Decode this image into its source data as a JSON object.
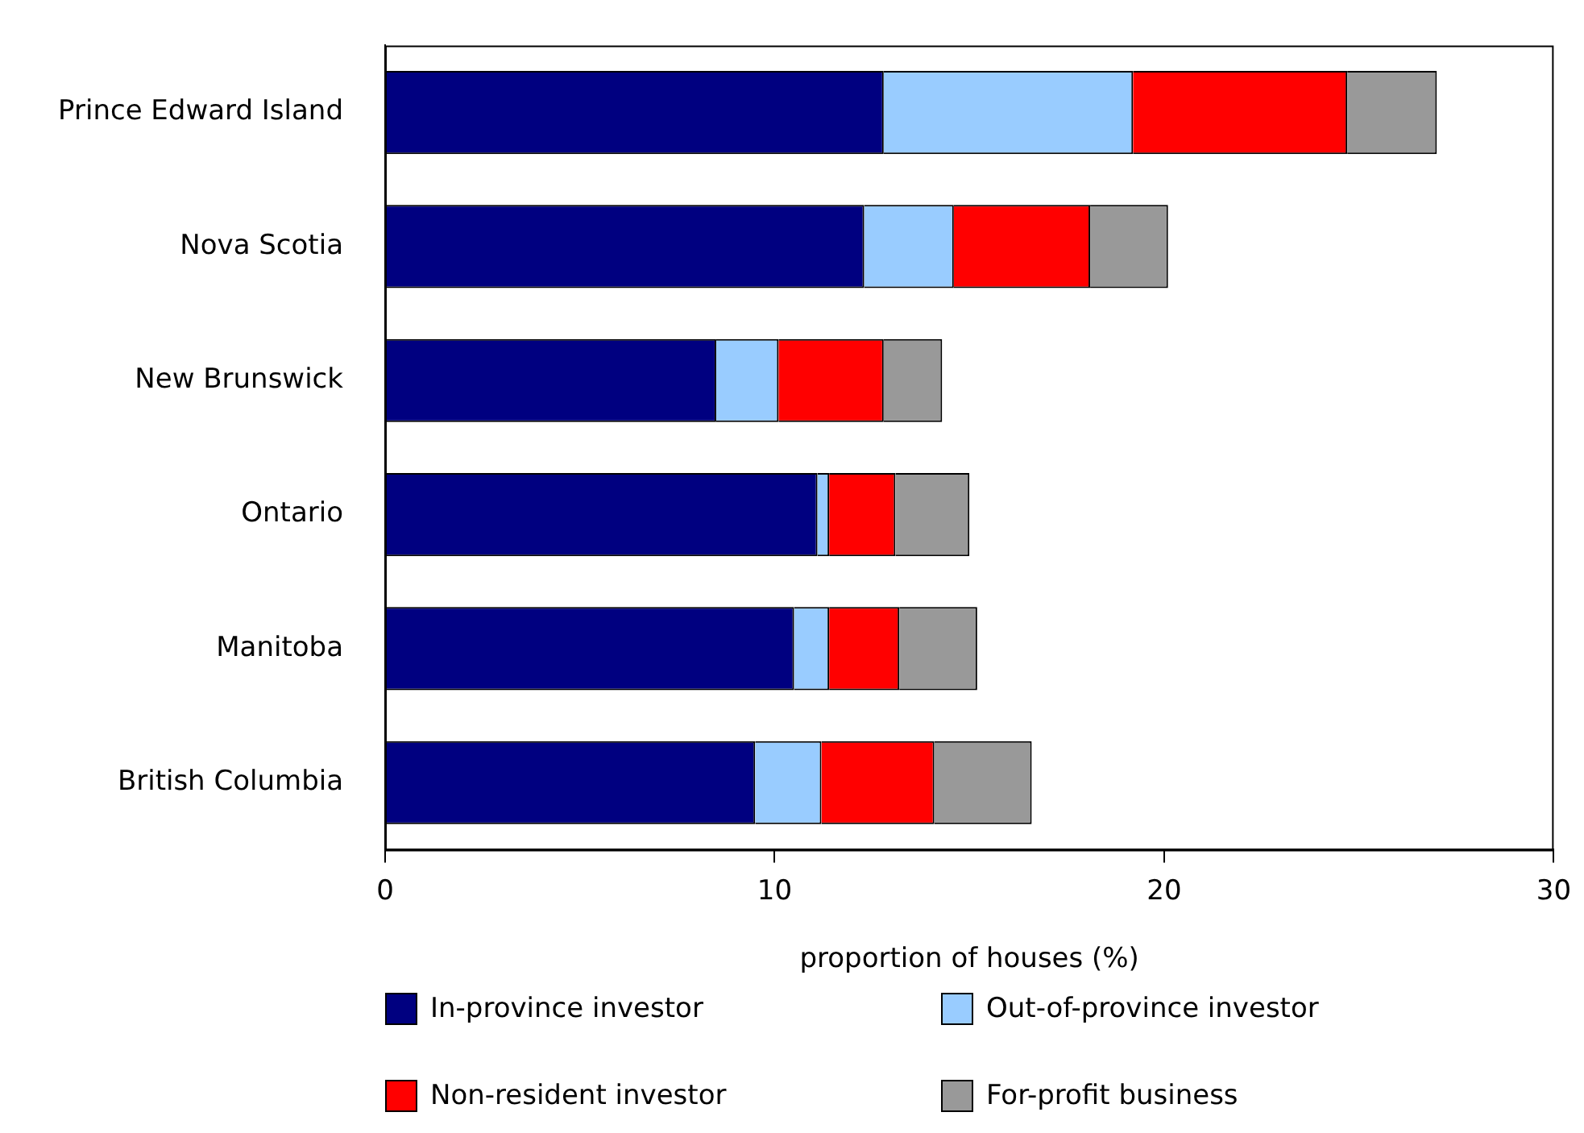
{
  "chart_data": {
    "type": "bar",
    "orientation": "horizontal",
    "stacked": true,
    "categories": [
      "Prince Edward Island",
      "Nova Scotia",
      "New Brunswick",
      "Ontario",
      "Manitoba",
      "British Columbia"
    ],
    "series": [
      {
        "name": "In-province investor",
        "color": "#000080",
        "values": [
          12.8,
          12.3,
          8.5,
          11.1,
          10.5,
          9.5
        ]
      },
      {
        "name": "Out-of-province investor",
        "color": "#99ccff",
        "values": [
          6.4,
          2.3,
          1.6,
          0.3,
          0.9,
          1.7
        ]
      },
      {
        "name": "Non-resident investor",
        "color": "#ff0000",
        "values": [
          5.5,
          3.5,
          2.7,
          1.7,
          1.8,
          2.9
        ]
      },
      {
        "name": "For-profit business",
        "color": "#999999",
        "values": [
          2.3,
          2.0,
          1.5,
          1.9,
          2.0,
          2.5
        ]
      }
    ],
    "xlim": [
      0,
      30
    ],
    "xticks": [
      0,
      10,
      20,
      30
    ],
    "xlabel": "proportion of houses (%)",
    "grid": false,
    "legend": "bottom"
  }
}
